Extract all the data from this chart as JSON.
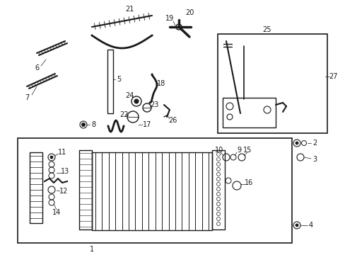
{
  "bg_color": "#ffffff",
  "line_color": "#1a1a1a",
  "fig_width": 4.89,
  "fig_height": 3.6,
  "dpi": 100,
  "fs": 7.0
}
